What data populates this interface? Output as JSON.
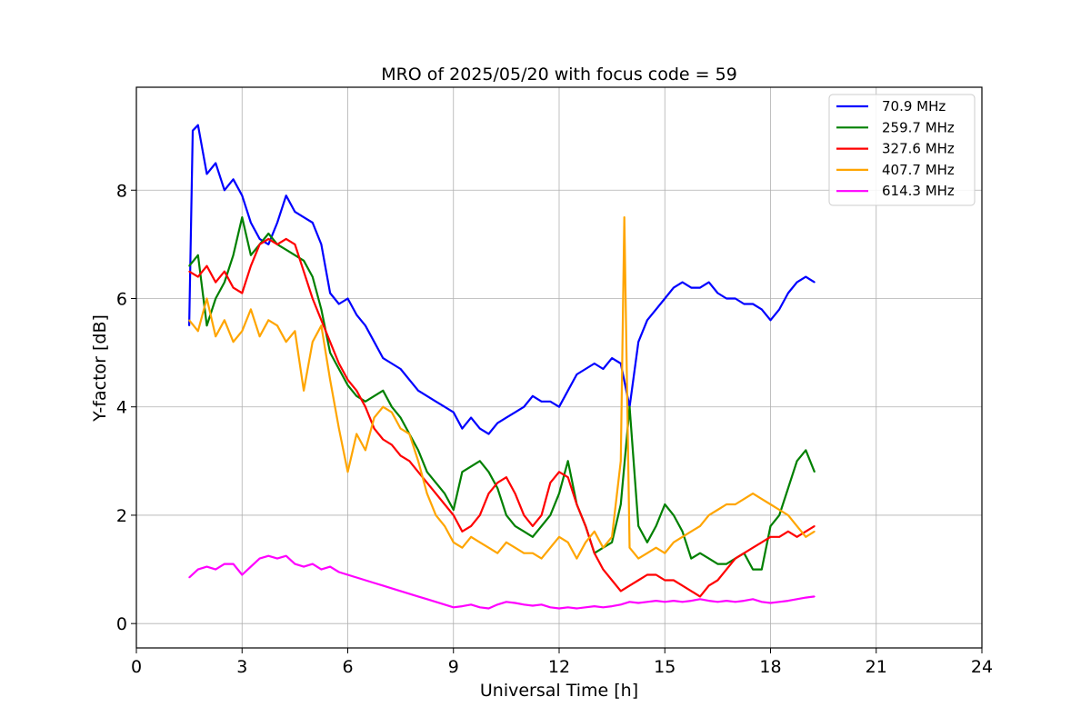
{
  "chart_data": {
    "type": "line",
    "title": "MRO of 2025/05/20 with focus code = 59",
    "xlabel": "Universal Time [h]",
    "ylabel": "Y-factor [dB]",
    "xlim": [
      0,
      24
    ],
    "ylim": [
      -0.45,
      9.9
    ],
    "xticks": [
      0,
      3,
      6,
      9,
      12,
      15,
      18,
      21,
      24
    ],
    "yticks": [
      0,
      2,
      4,
      6,
      8
    ],
    "grid": true,
    "legend_position": "top-right",
    "series": [
      {
        "name": " 70.9 MHz",
        "color": "#0000ff",
        "x": [
          1.5,
          1.6,
          1.75,
          2.0,
          2.25,
          2.5,
          2.75,
          3.0,
          3.25,
          3.5,
          3.75,
          4.0,
          4.25,
          4.5,
          4.75,
          5.0,
          5.25,
          5.5,
          5.75,
          6.0,
          6.25,
          6.5,
          6.75,
          7.0,
          7.25,
          7.5,
          7.75,
          8.0,
          8.25,
          8.5,
          8.75,
          9.0,
          9.25,
          9.5,
          9.75,
          10.0,
          10.25,
          10.5,
          10.75,
          11.0,
          11.25,
          11.5,
          11.75,
          12.0,
          12.25,
          12.5,
          12.75,
          13.0,
          13.25,
          13.5,
          13.75,
          14.0,
          14.25,
          14.5,
          14.75,
          15.0,
          15.25,
          15.5,
          15.75,
          16.0,
          16.25,
          16.5,
          16.75,
          17.0,
          17.25,
          17.5,
          17.75,
          18.0,
          18.25,
          18.5,
          18.75,
          19.0,
          19.25
        ],
        "y": [
          5.5,
          9.1,
          9.2,
          8.3,
          8.5,
          8.0,
          8.2,
          7.9,
          7.4,
          7.1,
          7.0,
          7.4,
          7.9,
          7.6,
          7.5,
          7.4,
          7.0,
          6.1,
          5.9,
          6.0,
          5.7,
          5.5,
          5.2,
          4.9,
          4.8,
          4.7,
          4.5,
          4.3,
          4.2,
          4.1,
          4.0,
          3.9,
          3.6,
          3.8,
          3.6,
          3.5,
          3.7,
          3.8,
          3.9,
          4.0,
          4.2,
          4.1,
          4.1,
          4.0,
          4.3,
          4.6,
          4.7,
          4.8,
          4.7,
          4.9,
          4.8,
          4.0,
          5.2,
          5.6,
          5.8,
          6.0,
          6.2,
          6.3,
          6.2,
          6.2,
          6.3,
          6.1,
          6.0,
          6.0,
          5.9,
          5.9,
          5.8,
          5.6,
          5.8,
          6.1,
          6.3,
          6.4,
          6.3
        ]
      },
      {
        "name": "259.7 MHz",
        "color": "#008000",
        "x": [
          1.5,
          1.75,
          2.0,
          2.25,
          2.5,
          2.75,
          3.0,
          3.25,
          3.5,
          3.75,
          4.0,
          4.25,
          4.5,
          4.75,
          5.0,
          5.25,
          5.5,
          5.75,
          6.0,
          6.25,
          6.5,
          6.75,
          7.0,
          7.25,
          7.5,
          7.75,
          8.0,
          8.25,
          8.5,
          8.75,
          9.0,
          9.25,
          9.5,
          9.75,
          10.0,
          10.25,
          10.5,
          10.75,
          11.0,
          11.25,
          11.5,
          11.75,
          12.0,
          12.25,
          12.5,
          12.75,
          13.0,
          13.25,
          13.5,
          13.75,
          14.0,
          14.25,
          14.5,
          14.75,
          15.0,
          15.25,
          15.5,
          15.75,
          16.0,
          16.25,
          16.5,
          16.75,
          17.0,
          17.25,
          17.5,
          17.75,
          18.0,
          18.25,
          18.5,
          18.75,
          19.0,
          19.25
        ],
        "y": [
          6.6,
          6.8,
          5.5,
          6.0,
          6.3,
          6.8,
          7.5,
          6.8,
          7.0,
          7.2,
          7.0,
          6.9,
          6.8,
          6.7,
          6.4,
          5.8,
          5.0,
          4.7,
          4.4,
          4.2,
          4.1,
          4.2,
          4.3,
          4.0,
          3.8,
          3.5,
          3.2,
          2.8,
          2.6,
          2.4,
          2.1,
          2.8,
          2.9,
          3.0,
          2.8,
          2.5,
          2.0,
          1.8,
          1.7,
          1.6,
          1.8,
          2.0,
          2.4,
          3.0,
          2.2,
          1.8,
          1.3,
          1.4,
          1.5,
          2.2,
          4.0,
          1.8,
          1.5,
          1.8,
          2.2,
          2.0,
          1.7,
          1.2,
          1.3,
          1.2,
          1.1,
          1.1,
          1.2,
          1.3,
          1.0,
          1.0,
          1.8,
          2.0,
          2.5,
          3.0,
          3.2,
          2.8
        ]
      },
      {
        "name": "327.6 MHz",
        "color": "#ff0000",
        "x": [
          1.5,
          1.75,
          2.0,
          2.25,
          2.5,
          2.75,
          3.0,
          3.25,
          3.5,
          3.75,
          4.0,
          4.25,
          4.5,
          4.75,
          5.0,
          5.25,
          5.5,
          5.75,
          6.0,
          6.25,
          6.5,
          6.75,
          7.0,
          7.25,
          7.5,
          7.75,
          8.0,
          8.25,
          8.5,
          8.75,
          9.0,
          9.25,
          9.5,
          9.75,
          10.0,
          10.25,
          10.5,
          10.75,
          11.0,
          11.25,
          11.5,
          11.75,
          12.0,
          12.25,
          12.5,
          12.75,
          13.0,
          13.25,
          13.5,
          13.75,
          14.0,
          14.25,
          14.5,
          14.75,
          15.0,
          15.25,
          15.5,
          15.75,
          16.0,
          16.25,
          16.5,
          16.75,
          17.0,
          17.25,
          17.5,
          17.75,
          18.0,
          18.25,
          18.5,
          18.75,
          19.0,
          19.25
        ],
        "y": [
          6.5,
          6.4,
          6.6,
          6.3,
          6.5,
          6.2,
          6.1,
          6.6,
          7.0,
          7.1,
          7.0,
          7.1,
          7.0,
          6.5,
          6.0,
          5.6,
          5.2,
          4.8,
          4.5,
          4.3,
          4.0,
          3.6,
          3.4,
          3.3,
          3.1,
          3.0,
          2.8,
          2.6,
          2.4,
          2.2,
          2.0,
          1.7,
          1.8,
          2.0,
          2.4,
          2.6,
          2.7,
          2.4,
          2.0,
          1.8,
          2.0,
          2.6,
          2.8,
          2.7,
          2.2,
          1.8,
          1.3,
          1.0,
          0.8,
          0.6,
          0.7,
          0.8,
          0.9,
          0.9,
          0.8,
          0.8,
          0.7,
          0.6,
          0.5,
          0.7,
          0.8,
          1.0,
          1.2,
          1.3,
          1.4,
          1.5,
          1.6,
          1.6,
          1.7,
          1.6,
          1.7,
          1.8
        ]
      },
      {
        "name": "407.7 MHz",
        "color": "#ffa500",
        "x": [
          1.5,
          1.75,
          2.0,
          2.25,
          2.5,
          2.75,
          3.0,
          3.25,
          3.5,
          3.75,
          4.0,
          4.25,
          4.5,
          4.75,
          5.0,
          5.25,
          5.5,
          5.75,
          6.0,
          6.25,
          6.5,
          6.75,
          7.0,
          7.25,
          7.5,
          7.75,
          8.0,
          8.25,
          8.5,
          8.75,
          9.0,
          9.25,
          9.5,
          9.75,
          10.0,
          10.25,
          10.5,
          10.75,
          11.0,
          11.25,
          11.5,
          11.75,
          12.0,
          12.25,
          12.5,
          12.75,
          13.0,
          13.25,
          13.5,
          13.75,
          13.85,
          14.0,
          14.25,
          14.5,
          14.75,
          15.0,
          15.25,
          15.5,
          15.75,
          16.0,
          16.25,
          16.5,
          16.75,
          17.0,
          17.25,
          17.5,
          17.75,
          18.0,
          18.25,
          18.5,
          18.75,
          19.0,
          19.25
        ],
        "y": [
          5.6,
          5.4,
          6.0,
          5.3,
          5.6,
          5.2,
          5.4,
          5.8,
          5.3,
          5.6,
          5.5,
          5.2,
          5.4,
          4.3,
          5.2,
          5.5,
          4.5,
          3.6,
          2.8,
          3.5,
          3.2,
          3.8,
          4.0,
          3.9,
          3.6,
          3.5,
          3.0,
          2.4,
          2.0,
          1.8,
          1.5,
          1.4,
          1.6,
          1.5,
          1.4,
          1.3,
          1.5,
          1.4,
          1.3,
          1.3,
          1.2,
          1.4,
          1.6,
          1.5,
          1.2,
          1.5,
          1.7,
          1.4,
          1.6,
          3.0,
          7.5,
          1.4,
          1.2,
          1.3,
          1.4,
          1.3,
          1.5,
          1.6,
          1.7,
          1.8,
          2.0,
          2.1,
          2.2,
          2.2,
          2.3,
          2.4,
          2.3,
          2.2,
          2.1,
          2.0,
          1.8,
          1.6,
          1.7
        ]
      },
      {
        "name": "614.3 MHz",
        "color": "#ff00ff",
        "x": [
          1.5,
          1.75,
          2.0,
          2.25,
          2.5,
          2.75,
          3.0,
          3.25,
          3.5,
          3.75,
          4.0,
          4.25,
          4.5,
          4.75,
          5.0,
          5.25,
          5.5,
          5.75,
          6.0,
          6.25,
          6.5,
          6.75,
          7.0,
          7.25,
          7.5,
          7.75,
          8.0,
          8.25,
          8.5,
          8.75,
          9.0,
          9.25,
          9.5,
          9.75,
          10.0,
          10.25,
          10.5,
          10.75,
          11.0,
          11.25,
          11.5,
          11.75,
          12.0,
          12.25,
          12.5,
          12.75,
          13.0,
          13.25,
          13.5,
          13.75,
          14.0,
          14.25,
          14.5,
          14.75,
          15.0,
          15.25,
          15.5,
          15.75,
          16.0,
          16.25,
          16.5,
          16.75,
          17.0,
          17.25,
          17.5,
          17.75,
          18.0,
          18.25,
          18.5,
          18.75,
          19.0,
          19.25
        ],
        "y": [
          0.85,
          1.0,
          1.05,
          1.0,
          1.1,
          1.1,
          0.9,
          1.05,
          1.2,
          1.25,
          1.2,
          1.25,
          1.1,
          1.05,
          1.1,
          1.0,
          1.05,
          0.95,
          0.9,
          0.85,
          0.8,
          0.75,
          0.7,
          0.65,
          0.6,
          0.55,
          0.5,
          0.45,
          0.4,
          0.35,
          0.3,
          0.32,
          0.35,
          0.3,
          0.28,
          0.35,
          0.4,
          0.38,
          0.35,
          0.33,
          0.35,
          0.3,
          0.28,
          0.3,
          0.28,
          0.3,
          0.32,
          0.3,
          0.32,
          0.35,
          0.4,
          0.38,
          0.4,
          0.42,
          0.4,
          0.42,
          0.4,
          0.42,
          0.45,
          0.42,
          0.4,
          0.42,
          0.4,
          0.42,
          0.45,
          0.4,
          0.38,
          0.4,
          0.42,
          0.45,
          0.48,
          0.5
        ]
      }
    ]
  }
}
